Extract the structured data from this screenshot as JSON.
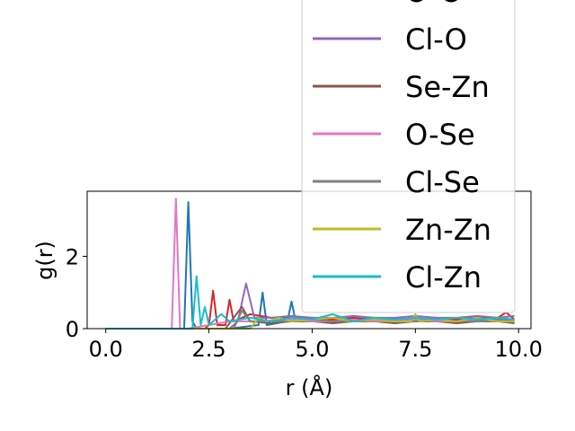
{
  "chart_data": {
    "type": "line",
    "xlabel": "r (Å)",
    "ylabel": "g(r)",
    "xlim": [
      -0.45,
      10.3
    ],
    "ylim": [
      0,
      3.8
    ],
    "xticks": [
      0.0,
      2.5,
      5.0,
      7.5,
      10.0
    ],
    "xtick_labels": [
      "0.0",
      "2.5",
      "5.0",
      "7.5",
      "10.0"
    ],
    "yticks": [
      0,
      2
    ],
    "ytick_labels": [
      "0",
      "2"
    ],
    "grid": false,
    "legend_position": "upper-right",
    "series": [
      {
        "name": "",
        "color": "#1f77b4",
        "x": [
          0,
          1.9,
          2.0,
          2.1,
          2.2,
          3.0,
          3.7,
          3.8,
          3.9,
          4.4,
          4.5,
          4.6,
          5.0,
          5.5,
          6.0,
          6.5,
          7.0,
          7.5,
          8.0,
          8.5,
          9.0,
          9.5,
          9.9
        ],
        "y": [
          0,
          0,
          3.5,
          0.2,
          0,
          0,
          0.1,
          1.0,
          0.1,
          0.2,
          0.75,
          0.2,
          0.3,
          0.15,
          0.3,
          0.2,
          0.25,
          0.2,
          0.3,
          0.25,
          0.2,
          0.3,
          0.2
        ]
      },
      {
        "name": "O-O",
        "color": "#d62728",
        "x": [
          0,
          2.4,
          2.5,
          2.6,
          2.7,
          2.9,
          3.0,
          3.1,
          3.5,
          4.0,
          4.5,
          5.0,
          5.5,
          6.0,
          6.5,
          7.0,
          7.5,
          8.0,
          8.5,
          9.0,
          9.5,
          9.7,
          9.9
        ],
        "y": [
          0,
          0,
          0.1,
          1.05,
          0.1,
          0.1,
          0.8,
          0.2,
          0.4,
          0.3,
          0.3,
          0.3,
          0.25,
          0.3,
          0.25,
          0.3,
          0.25,
          0.3,
          0.25,
          0.3,
          0.3,
          0.45,
          0.25
        ]
      },
      {
        "name": "Cl-O",
        "color": "#9467bd",
        "x": [
          0,
          3.0,
          3.2,
          3.4,
          3.6,
          4.0,
          4.5,
          5.0,
          5.5,
          6.0,
          6.5,
          7.0,
          7.5,
          8.0,
          8.5,
          9.0,
          9.5,
          9.9
        ],
        "y": [
          0,
          0,
          0.2,
          1.25,
          0.3,
          0.3,
          0.35,
          0.3,
          0.3,
          0.35,
          0.3,
          0.3,
          0.35,
          0.3,
          0.3,
          0.35,
          0.3,
          0.35
        ]
      },
      {
        "name": "Se-Zn",
        "color": "#8c564b",
        "x": [
          0,
          2.9,
          3.1,
          3.3,
          3.5,
          4.0,
          4.5,
          5.0,
          5.5,
          6.0,
          6.5,
          7.0,
          7.5,
          8.0,
          8.5,
          9.0,
          9.5,
          9.9
        ],
        "y": [
          0,
          0,
          0.3,
          0.6,
          0.2,
          0.15,
          0.2,
          0.2,
          0.15,
          0.2,
          0.2,
          0.15,
          0.2,
          0.2,
          0.15,
          0.2,
          0.2,
          0.15
        ]
      },
      {
        "name": "O-Se",
        "color": "#e377c2",
        "x": [
          0,
          1.6,
          1.7,
          1.8,
          2.0,
          2.5,
          3.0,
          3.5,
          4.0,
          4.5,
          5.0,
          5.5,
          6.0,
          6.5,
          7.0,
          7.5,
          8.0,
          8.5,
          9.0,
          9.5,
          9.9
        ],
        "y": [
          0,
          0,
          3.6,
          0,
          0,
          0.1,
          0.2,
          0.2,
          0.2,
          0.25,
          0.2,
          0.2,
          0.25,
          0.2,
          0.2,
          0.25,
          0.2,
          0.2,
          0.25,
          0.2,
          0.2
        ]
      },
      {
        "name": "Cl-Se",
        "color": "#7f7f7f",
        "x": [
          0,
          3.1,
          3.3,
          3.5,
          4.0,
          4.5,
          5.0,
          5.5,
          6.0,
          6.5,
          7.0,
          7.5,
          8.0,
          8.5,
          9.0,
          9.5,
          9.9
        ],
        "y": [
          0,
          0,
          0.5,
          0.2,
          0.2,
          0.2,
          0.25,
          0.2,
          0.2,
          0.25,
          0.2,
          0.2,
          0.25,
          0.2,
          0.2,
          0.25,
          0.2
        ]
      },
      {
        "name": "Zn-Zn",
        "color": "#bcbd22",
        "x": [
          0,
          3.5,
          3.7,
          3.9,
          4.2,
          4.5,
          5.0,
          5.5,
          6.0,
          6.5,
          7.0,
          7.4,
          7.5,
          7.6,
          8.0,
          8.5,
          9.0,
          9.5,
          9.9
        ],
        "y": [
          0,
          0,
          0.3,
          0.2,
          0.3,
          0.2,
          0.25,
          0.3,
          0.2,
          0.25,
          0.2,
          0.2,
          0.4,
          0.2,
          0.25,
          0.2,
          0.3,
          0.2,
          0.2
        ]
      },
      {
        "name": "Cl-Zn",
        "color": "#17becf",
        "x": [
          0,
          2.1,
          2.2,
          2.3,
          2.4,
          2.5,
          2.8,
          3.0,
          3.5,
          4.0,
          4.5,
          5.0,
          5.5,
          6.0,
          6.5,
          7.0,
          7.5,
          8.0,
          8.5,
          9.0,
          9.5,
          9.9
        ],
        "y": [
          0,
          0,
          1.45,
          0.1,
          0.6,
          0.1,
          0.4,
          0.2,
          0.3,
          0.2,
          0.3,
          0.25,
          0.4,
          0.2,
          0.3,
          0.25,
          0.3,
          0.25,
          0.3,
          0.25,
          0.3,
          0.25
        ]
      }
    ]
  }
}
